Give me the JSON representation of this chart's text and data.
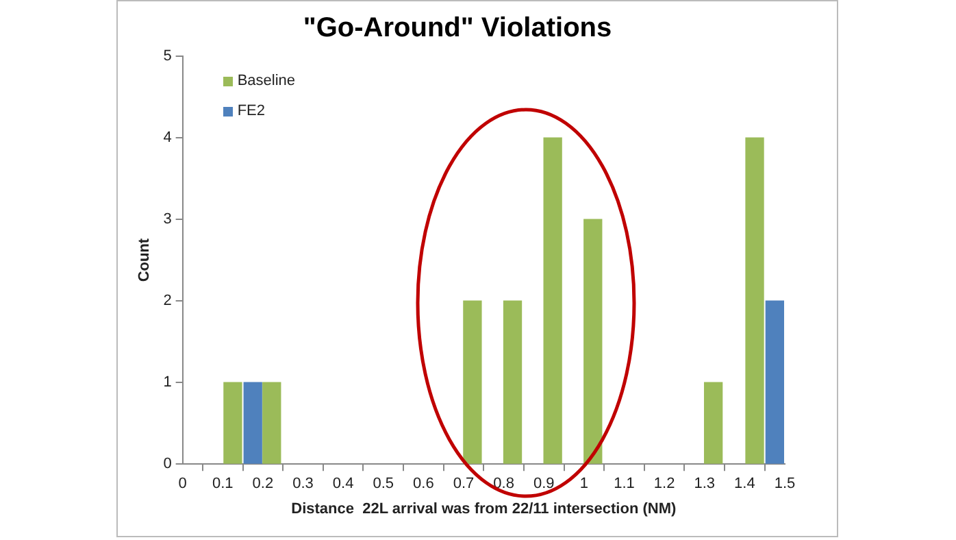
{
  "chart_data": {
    "type": "bar",
    "title": "\"Go-Around\" Violations",
    "xlabel": "Distance  22L arrival was from 22/11 intersection (NM)",
    "ylabel": "Count",
    "series": [
      {
        "name": "Baseline",
        "color": "#9bbb59",
        "x": [
          0.125,
          0.222,
          0.722,
          0.822,
          0.922,
          1.022,
          1.322,
          1.425
        ],
        "values": [
          1,
          1,
          2,
          2,
          4,
          3,
          1,
          4
        ]
      },
      {
        "name": "FE2",
        "color": "#4f81bd",
        "x": [
          0.175,
          1.475
        ],
        "values": [
          1,
          2
        ]
      }
    ],
    "xlim": [
      0,
      1.5
    ],
    "xticks": [
      0,
      0.1,
      0.2,
      0.3,
      0.4,
      0.5,
      0.6,
      0.7,
      0.8,
      0.9,
      {
        "value": 1,
        "label": "1"
      },
      1.1,
      1.2,
      1.3,
      1.4,
      1.5
    ],
    "ylim": [
      0,
      5
    ],
    "yticks": [
      0,
      1,
      2,
      3,
      4,
      5
    ],
    "grid": false,
    "legend": "top left"
  }
}
